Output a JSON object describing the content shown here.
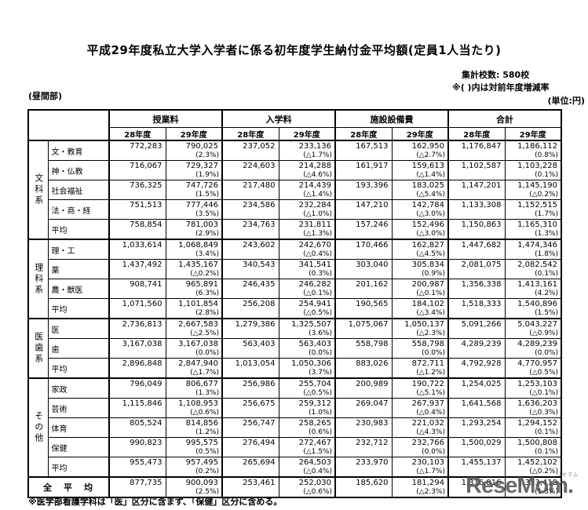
{
  "page": {
    "title": "平成29年度私立大学入学者に係る初年度学生納付金平均額(定員1人当たり)",
    "day_division": "(昼間部)",
    "meta": {
      "school_count": "集計校数: 580校",
      "yoy_note": "※( )内は対前年度増減率",
      "unit": "(単位:円)"
    },
    "footnote": "※医学部看護学科は「医」区分に含まず、「保健」区分に含める。",
    "watermark": {
      "text": "ReseMom.",
      "ruby": "リセマム"
    }
  },
  "table": {
    "col_groups": [
      "授業料",
      "入学料",
      "施設設備費",
      "合計"
    ],
    "year_labels": [
      "28年度",
      "29年度"
    ],
    "sections": [
      {
        "group": "文科系",
        "rows": [
          {
            "label": "文・教育",
            "cells": [
              [
                "772,283",
                ""
              ],
              [
                "790,025",
                "(2.3%)"
              ],
              [
                "237,052",
                ""
              ],
              [
                "233,136",
                "(△1.7%)"
              ],
              [
                "167,513",
                ""
              ],
              [
                "162,950",
                "(△2.7%)"
              ],
              [
                "1,176,847",
                ""
              ],
              [
                "1,186,112",
                "(0.8%)"
              ]
            ]
          },
          {
            "label": "神・仏教",
            "cells": [
              [
                "716,067",
                ""
              ],
              [
                "729,327",
                "(1.9%)"
              ],
              [
                "224,603",
                ""
              ],
              [
                "214,288",
                "(△4.6%)"
              ],
              [
                "161,917",
                ""
              ],
              [
                "159,613",
                "(△1.4%)"
              ],
              [
                "1,102,587",
                ""
              ],
              [
                "1,103,228",
                "(0.1%)"
              ]
            ]
          },
          {
            "label": "社会福祉",
            "cells": [
              [
                "736,325",
                ""
              ],
              [
                "747,726",
                "(1.5%)"
              ],
              [
                "217,480",
                ""
              ],
              [
                "214,439",
                "(△1.4%)"
              ],
              [
                "193,396",
                ""
              ],
              [
                "183,025",
                "(△5.4%)"
              ],
              [
                "1,147,201",
                ""
              ],
              [
                "1,145,190",
                "(△0.2%)"
              ]
            ]
          },
          {
            "label": "法・商・経",
            "cells": [
              [
                "751,513",
                ""
              ],
              [
                "777,446",
                "(3.5%)"
              ],
              [
                "234,586",
                ""
              ],
              [
                "232,284",
                "(△1.0%)"
              ],
              [
                "147,210",
                ""
              ],
              [
                "142,784",
                "(△3.0%)"
              ],
              [
                "1,133,308",
                ""
              ],
              [
                "1,152,515",
                "(1.7%)"
              ]
            ]
          },
          {
            "label": "平均",
            "cells": [
              [
                "758,854",
                ""
              ],
              [
                "781,003",
                "(2.9%)"
              ],
              [
                "234,763",
                ""
              ],
              [
                "231,811",
                "(△1.3%)"
              ],
              [
                "157,246",
                ""
              ],
              [
                "152,496",
                "(△3.0%)"
              ],
              [
                "1,150,863",
                ""
              ],
              [
                "1,165,310",
                "(1.3%)"
              ]
            ]
          }
        ]
      },
      {
        "group": "理科系",
        "rows": [
          {
            "label": "理・工",
            "cells": [
              [
                "1,033,614",
                ""
              ],
              [
                "1,068,849",
                "(3.4%)"
              ],
              [
                "243,602",
                ""
              ],
              [
                "242,670",
                "(△0.4%)"
              ],
              [
                "170,466",
                ""
              ],
              [
                "162,827",
                "(△4.5%)"
              ],
              [
                "1,447,682",
                ""
              ],
              [
                "1,474,346",
                "(1.8%)"
              ]
            ]
          },
          {
            "label": "薬",
            "cells": [
              [
                "1,437,492",
                ""
              ],
              [
                "1,435,167",
                "(△0.2%)"
              ],
              [
                "340,543",
                ""
              ],
              [
                "341,541",
                "(0.3%)"
              ],
              [
                "303,040",
                ""
              ],
              [
                "305,834",
                "(0.9%)"
              ],
              [
                "2,081,075",
                ""
              ],
              [
                "2,082,542",
                "(0.1%)"
              ]
            ]
          },
          {
            "label": "農・獣医",
            "cells": [
              [
                "908,741",
                ""
              ],
              [
                "965,891",
                "(6.3%)"
              ],
              [
                "246,435",
                ""
              ],
              [
                "246,282",
                "(△0.1%)"
              ],
              [
                "201,162",
                ""
              ],
              [
                "200,987",
                "(△0.1%)"
              ],
              [
                "1,356,338",
                ""
              ],
              [
                "1,413,161",
                "(4.2%)"
              ]
            ]
          },
          {
            "label": "平均",
            "cells": [
              [
                "1,071,560",
                ""
              ],
              [
                "1,101,854",
                "(2.8%)"
              ],
              [
                "256,208",
                ""
              ],
              [
                "254,941",
                "(△0.5%)"
              ],
              [
                "190,565",
                ""
              ],
              [
                "184,102",
                "(△3.4%)"
              ],
              [
                "1,518,333",
                ""
              ],
              [
                "1,540,896",
                "(1.5%)"
              ]
            ]
          }
        ]
      },
      {
        "group": "医歯系",
        "rows": [
          {
            "label": "医",
            "cells": [
              [
                "2,736,813",
                ""
              ],
              [
                "2,667,583",
                "(△2.5%)"
              ],
              [
                "1,279,386",
                ""
              ],
              [
                "1,325,507",
                "(3.6%)"
              ],
              [
                "1,075,067",
                ""
              ],
              [
                "1,050,137",
                "(△2.3%)"
              ],
              [
                "5,091,266",
                ""
              ],
              [
                "5,043,227",
                "(△0.9%)"
              ]
            ]
          },
          {
            "label": "歯",
            "cells": [
              [
                "3,167,038",
                ""
              ],
              [
                "3,167,038",
                "(0.0%)"
              ],
              [
                "563,403",
                ""
              ],
              [
                "563,403",
                "(0.0%)"
              ],
              [
                "558,798",
                ""
              ],
              [
                "558,798",
                "(0.0%)"
              ],
              [
                "4,289,239",
                ""
              ],
              [
                "4,289,239",
                "(0.0%)"
              ]
            ]
          },
          {
            "label": "平均",
            "cells": [
              [
                "2,896,848",
                ""
              ],
              [
                "2,847,940",
                "(△1.7%)"
              ],
              [
                "1,013,054",
                ""
              ],
              [
                "1,050,306",
                "(3.7%)"
              ],
              [
                "883,026",
                ""
              ],
              [
                "872,711",
                "(△1.2%)"
              ],
              [
                "4,792,928",
                ""
              ],
              [
                "4,770,957",
                "(△0.5%)"
              ]
            ]
          }
        ]
      },
      {
        "group": "その他",
        "rows": [
          {
            "label": "家政",
            "cells": [
              [
                "796,049",
                ""
              ],
              [
                "806,677",
                "(1.3%)"
              ],
              [
                "256,986",
                ""
              ],
              [
                "255,704",
                "(△0.5%)"
              ],
              [
                "200,989",
                ""
              ],
              [
                "190,722",
                "(△5.1%)"
              ],
              [
                "1,254,025",
                ""
              ],
              [
                "1,253,103",
                "(△0.1%)"
              ]
            ]
          },
          {
            "label": "芸術",
            "cells": [
              [
                "1,115,846",
                ""
              ],
              [
                "1,108,953",
                "(△0.6%)"
              ],
              [
                "256,675",
                ""
              ],
              [
                "259,312",
                "(1.0%)"
              ],
              [
                "269,047",
                ""
              ],
              [
                "267,937",
                "(△0.4%)"
              ],
              [
                "1,641,568",
                ""
              ],
              [
                "1,636,203",
                "(△0.3%)"
              ]
            ]
          },
          {
            "label": "体育",
            "cells": [
              [
                "805,524",
                ""
              ],
              [
                "814,856",
                "(1.2%)"
              ],
              [
                "256,747",
                ""
              ],
              [
                "258,265",
                "(0.6%)"
              ],
              [
                "230,983",
                ""
              ],
              [
                "221,032",
                "(△4.3%)"
              ],
              [
                "1,293,254",
                ""
              ],
              [
                "1,294,152",
                "(0.1%)"
              ]
            ]
          },
          {
            "label": "保健",
            "cells": [
              [
                "990,823",
                ""
              ],
              [
                "995,575",
                "(0.5%)"
              ],
              [
                "276,494",
                ""
              ],
              [
                "272,467",
                "(△1.5%)"
              ],
              [
                "232,712",
                ""
              ],
              [
                "232,766",
                "(0.0%)"
              ],
              [
                "1,500,029",
                ""
              ],
              [
                "1,500,808",
                "(0.1%)"
              ]
            ]
          },
          {
            "label": "平均",
            "cells": [
              [
                "955,473",
                ""
              ],
              [
                "957,495",
                "(0.2%)"
              ],
              [
                "265,694",
                ""
              ],
              [
                "264,503",
                "(△0.4%)"
              ],
              [
                "233,970",
                ""
              ],
              [
                "230,103",
                "(△1.7%)"
              ],
              [
                "1,455,137",
                ""
              ],
              [
                "1,452,102",
                "(△0.2%)"
              ]
            ]
          }
        ]
      }
    ],
    "total_row": {
      "label": "全　平　均",
      "cells": [
        [
          "877,735",
          ""
        ],
        [
          "900,093",
          "(2.5%)"
        ],
        [
          "253,461",
          ""
        ],
        [
          "252,030",
          "(△0.6%)"
        ],
        [
          "185,620",
          ""
        ],
        [
          "181,294",
          "(△2.3%)"
        ],
        [
          "1,316,816",
          ""
        ],
        [
          "1,333,418",
          "(1.3%)"
        ]
      ]
    }
  }
}
